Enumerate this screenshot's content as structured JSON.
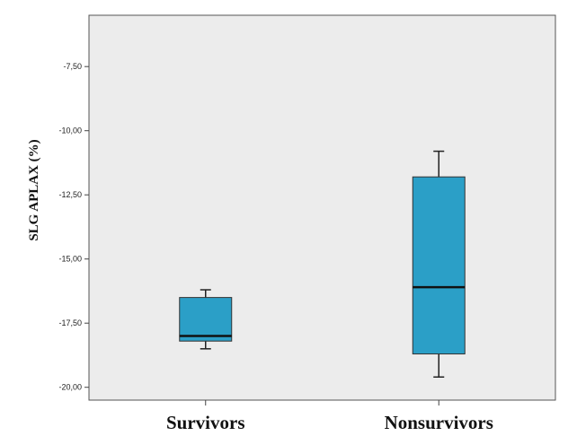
{
  "chart_data": {
    "type": "boxplot",
    "ylabel": "SLG APLAX (%)",
    "xlabel": "",
    "ylim": [
      -20.5,
      -5.5
    ],
    "yticks": [
      -7.5,
      -10.0,
      -12.5,
      -15.0,
      -17.5,
      -20.0
    ],
    "ytick_labels": [
      "-7,50",
      "-10,00",
      "-12,50",
      "-15,00",
      "-17,50",
      "-20,00"
    ],
    "categories": [
      "Survivors",
      "Nonsurvivors"
    ],
    "boxes": [
      {
        "category": "Survivors",
        "whisker_high": -16.2,
        "q3": -16.5,
        "median": -18.0,
        "q1": -18.2,
        "whisker_low": -18.5
      },
      {
        "category": "Nonsurvivors",
        "whisker_high": -10.8,
        "q3": -11.8,
        "median": -16.1,
        "q1": -18.7,
        "whisker_low": -19.6
      }
    ],
    "grid": false,
    "box_color": "#2b9fc7",
    "plot_background": "#ececec"
  }
}
